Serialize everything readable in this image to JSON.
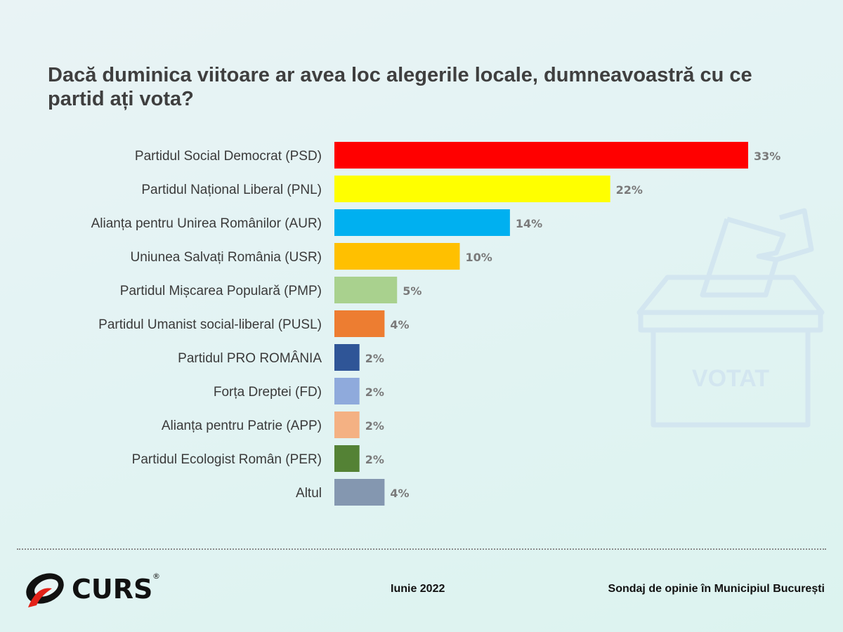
{
  "chart_data": {
    "type": "bar",
    "orientation": "horizontal",
    "title": "Dacă duminica viitoare ar avea loc alegerile locale, dumneavoastră cu ce partid ați vota?",
    "categories": [
      "Partidul Social Democrat (PSD)",
      "Partidul Național Liberal (PNL)",
      "Alianța pentru Unirea Românilor (AUR)",
      "Uniunea Salvați România (USR)",
      "Partidul Mișcarea Populară (PMP)",
      "Partidul Umanist social-liberal (PUSL)",
      "Partidul PRO ROMÂNIA",
      "Forța Dreptei (FD)",
      "Alianța pentru Patrie (APP)",
      "Partidul Ecologist Român (PER)",
      "Altul"
    ],
    "values": [
      33,
      22,
      14,
      10,
      5,
      4,
      2,
      2,
      2,
      2,
      4
    ],
    "value_labels": [
      "33%",
      "22%",
      "14%",
      "10%",
      "5%",
      "4%",
      "2%",
      "2%",
      "2%",
      "2%",
      "4%"
    ],
    "colors": [
      "#ff0000",
      "#ffff00",
      "#00b0f0",
      "#ffc000",
      "#a9d18e",
      "#ed7d31",
      "#2f5597",
      "#8faadc",
      "#f4b183",
      "#548235",
      "#8497b0"
    ],
    "xlabel": "",
    "ylabel": "",
    "xlim": [
      0,
      33
    ],
    "grid": false,
    "legend": "none"
  },
  "watermark": {
    "text": "VOTAT"
  },
  "footer": {
    "logo": "CURS",
    "date": "Iunie 2022",
    "source": "Sondaj de opinie în Municipiul București"
  }
}
